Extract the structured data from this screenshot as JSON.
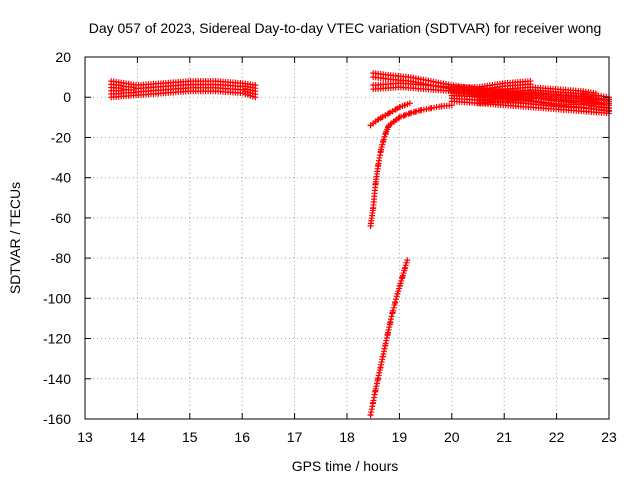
{
  "chart_data": {
    "type": "scatter",
    "title": "Day 057 of 2023, Sidereal Day-to-day VTEC variation (SDTVAR) for receiver wong",
    "xlabel": "GPS time / hours",
    "ylabel": "SDTVAR / TECUs",
    "xlim": [
      13,
      23
    ],
    "ylim": [
      -160,
      20
    ],
    "xticks": [
      13,
      14,
      15,
      16,
      17,
      18,
      19,
      20,
      21,
      22,
      23
    ],
    "yticks": [
      20,
      0,
      -20,
      -40,
      -60,
      -80,
      -100,
      -120,
      -140,
      -160
    ],
    "grid": true,
    "marker": "+",
    "color": "#ff0000",
    "series": [
      {
        "band": true,
        "x": [
          13.5,
          14.0,
          14.5,
          15.0,
          15.5,
          16.0,
          16.25
        ],
        "top": [
          8,
          6,
          7,
          8,
          8,
          7,
          6
        ],
        "bottom": [
          0,
          1,
          2,
          3,
          3,
          2,
          0
        ]
      },
      {
        "band": false,
        "x": [
          18.45,
          18.5,
          18.55,
          18.6,
          18.65,
          18.7,
          18.75,
          18.8,
          18.9,
          19.0,
          19.2,
          19.4,
          19.6,
          19.8,
          20.0
        ],
        "y": [
          -64,
          -55,
          -42,
          -33,
          -26,
          -21,
          -17,
          -14,
          -12,
          -10,
          -8,
          -6.5,
          -5.5,
          -4.5,
          -4
        ]
      },
      {
        "band": false,
        "x": [
          18.45,
          18.6,
          18.8,
          19.0,
          19.2
        ],
        "y": [
          -14,
          -11,
          -8,
          -5,
          -3
        ]
      },
      {
        "band": false,
        "x": [
          18.45,
          18.55,
          18.65,
          18.75,
          18.85,
          18.95,
          19.05,
          19.15
        ],
        "y": [
          -158,
          -145,
          -133,
          -121,
          -109,
          -99,
          -90,
          -81
        ]
      },
      {
        "band": true,
        "x": [
          18.5,
          18.8,
          19.2,
          19.6,
          20.0,
          20.5,
          21.0,
          21.5,
          22.0,
          22.5,
          23.0
        ],
        "top": [
          12,
          11,
          10,
          8,
          6,
          4,
          2,
          0,
          -2,
          -3,
          -4
        ],
        "bottom": [
          10,
          9,
          8,
          6,
          4,
          2,
          0,
          -2,
          -4,
          -5,
          -7
        ]
      },
      {
        "band": true,
        "x": [
          18.5,
          19.0,
          19.5,
          20.0,
          20.5,
          21.0,
          21.5,
          22.0,
          22.5,
          23.0
        ],
        "top": [
          6,
          7,
          6,
          5,
          3,
          3,
          2,
          1,
          0,
          -1
        ],
        "bottom": [
          4,
          5,
          4,
          3,
          1,
          1,
          0,
          -1,
          -2,
          -3
        ]
      },
      {
        "band": true,
        "x": [
          20.0,
          20.5,
          21.0,
          21.5
        ],
        "top": [
          5,
          5,
          7,
          8
        ],
        "bottom": [
          -2,
          -3,
          -2,
          -1
        ]
      },
      {
        "band": true,
        "x": [
          20.5,
          21.0,
          21.5,
          22.0,
          22.5,
          23.0
        ],
        "top": [
          2,
          1,
          0,
          -2,
          -2,
          -4
        ],
        "bottom": [
          -3,
          -4,
          -5,
          -6,
          -7,
          -8
        ]
      },
      {
        "band": true,
        "x": [
          21.5,
          22.0,
          22.5,
          22.75
        ],
        "top": [
          5,
          4,
          3,
          2
        ],
        "bottom": [
          1,
          0,
          -1,
          -2
        ]
      },
      {
        "band": true,
        "x": [
          22.5,
          22.75,
          23.0
        ],
        "top": [
          2,
          1,
          0
        ],
        "bottom": [
          -1,
          -1,
          -2
        ]
      }
    ]
  }
}
